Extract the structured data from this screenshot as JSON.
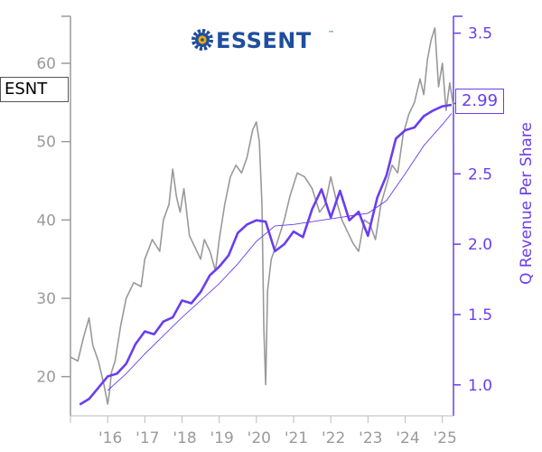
{
  "logo": {
    "text": "ESSENT",
    "tm": "™",
    "icon": "gear-icon"
  },
  "ticker": "ESNT",
  "last_value": "2.99",
  "colors": {
    "price": "#999999",
    "revenue": "#6a3df0",
    "average": "#6a3df0",
    "axis_left": "#9a9a9a",
    "logo": "#1f4e9e",
    "logo_accent": "#f2a900"
  },
  "chart_data": {
    "type": "line",
    "xlabel": "",
    "ylabel_left": "",
    "ylabel_right": "Q Revenue Per Share",
    "x_ticks": [
      "'16",
      "'17",
      "'18",
      "'19",
      "'20",
      "'21",
      "'22",
      "'23",
      "'24",
      "'25"
    ],
    "x_range": [
      2015.0,
      2025.3
    ],
    "ylim_left": [
      15,
      66
    ],
    "ylim_right": [
      0.78,
      3.62
    ],
    "yticks_left": [
      20,
      30,
      40,
      50,
      60
    ],
    "yticks_right": [
      1.0,
      1.5,
      2.0,
      2.5,
      3.0,
      3.5
    ],
    "ytick_labels_right": [
      "1.0",
      "1.5",
      "2.0",
      "2.5",
      "3.0",
      "3.5"
    ],
    "grid": false,
    "series": [
      {
        "axis": "left",
        "style": "price",
        "x": [
          2015.0,
          2015.2,
          2015.35,
          2015.5,
          2015.6,
          2015.75,
          2015.9,
          2016.0,
          2016.05,
          2016.1,
          2016.2,
          2016.35,
          2016.5,
          2016.7,
          2016.9,
          2017.0,
          2017.2,
          2017.4,
          2017.5,
          2017.65,
          2017.75,
          2017.85,
          2017.95,
          2018.05,
          2018.2,
          2018.35,
          2018.5,
          2018.6,
          2018.75,
          2018.9,
          2019.0,
          2019.15,
          2019.3,
          2019.45,
          2019.6,
          2019.75,
          2019.9,
          2020.0,
          2020.08,
          2020.15,
          2020.2,
          2020.25,
          2020.3,
          2020.4,
          2020.55,
          2020.75,
          2020.9,
          2021.1,
          2021.3,
          2021.5,
          2021.7,
          2021.85,
          2022.0,
          2022.15,
          2022.3,
          2022.45,
          2022.6,
          2022.75,
          2022.9,
          2023.05,
          2023.2,
          2023.35,
          2023.5,
          2023.65,
          2023.8,
          2023.95,
          2024.1,
          2024.25,
          2024.4,
          2024.5,
          2024.6,
          2024.7,
          2024.8,
          2024.9,
          2025.0,
          2025.1,
          2025.2,
          2025.3
        ],
        "values": [
          22.5,
          22.0,
          25.0,
          27.5,
          24.0,
          22.0,
          19.0,
          16.5,
          18.0,
          20.5,
          22.0,
          26.5,
          30.0,
          32.0,
          31.5,
          35.0,
          37.5,
          36.0,
          40.0,
          42.0,
          46.5,
          43.0,
          41.0,
          44.0,
          38.0,
          36.5,
          35.0,
          37.5,
          36.0,
          33.5,
          37.5,
          42.0,
          45.5,
          47.0,
          46.0,
          48.0,
          51.5,
          52.5,
          50.0,
          42.0,
          26.0,
          19.0,
          31.0,
          35.0,
          37.0,
          40.0,
          43.0,
          46.0,
          45.5,
          44.0,
          41.0,
          42.0,
          45.5,
          42.5,
          40.0,
          38.5,
          37.0,
          36.0,
          40.0,
          39.5,
          37.5,
          42.0,
          44.5,
          47.0,
          46.0,
          51.0,
          53.5,
          55.0,
          58.0,
          56.0,
          60.5,
          63.0,
          64.5,
          57.0,
          60.0,
          54.0,
          57.5,
          54.5
        ]
      },
      {
        "axis": "right",
        "style": "revenue",
        "name": "",
        "x": [
          2015.25,
          2015.5,
          2015.75,
          2016.0,
          2016.25,
          2016.5,
          2016.75,
          2017.0,
          2017.25,
          2017.5,
          2017.75,
          2018.0,
          2018.25,
          2018.5,
          2018.75,
          2019.0,
          2019.25,
          2019.5,
          2019.75,
          2020.0,
          2020.25,
          2020.5,
          2020.75,
          2021.0,
          2021.25,
          2021.5,
          2021.75,
          2022.0,
          2022.25,
          2022.5,
          2022.75,
          2023.0,
          2023.25,
          2023.5,
          2023.75,
          2024.0,
          2024.25,
          2024.5,
          2024.75,
          2025.0,
          2025.25
        ],
        "values": [
          0.86,
          0.9,
          0.98,
          1.06,
          1.08,
          1.15,
          1.29,
          1.38,
          1.36,
          1.45,
          1.48,
          1.6,
          1.58,
          1.66,
          1.78,
          1.84,
          1.92,
          2.08,
          2.14,
          2.17,
          2.16,
          1.95,
          2.0,
          2.09,
          2.05,
          2.25,
          2.39,
          2.19,
          2.38,
          2.17,
          2.23,
          2.06,
          2.33,
          2.49,
          2.75,
          2.81,
          2.83,
          2.91,
          2.95,
          2.98,
          2.99
        ]
      },
      {
        "axis": "right",
        "style": "average",
        "name": "",
        "x": [
          2016.0,
          2016.5,
          2017.0,
          2017.5,
          2018.0,
          2018.5,
          2019.0,
          2019.5,
          2020.0,
          2020.5,
          2021.0,
          2021.5,
          2022.0,
          2022.5,
          2023.0,
          2023.5,
          2024.0,
          2024.5,
          2025.0,
          2025.25
        ],
        "values": [
          0.96,
          1.08,
          1.22,
          1.35,
          1.48,
          1.6,
          1.72,
          1.86,
          2.02,
          2.13,
          2.14,
          2.16,
          2.18,
          2.2,
          2.22,
          2.31,
          2.5,
          2.7,
          2.85,
          2.93
        ]
      }
    ]
  }
}
